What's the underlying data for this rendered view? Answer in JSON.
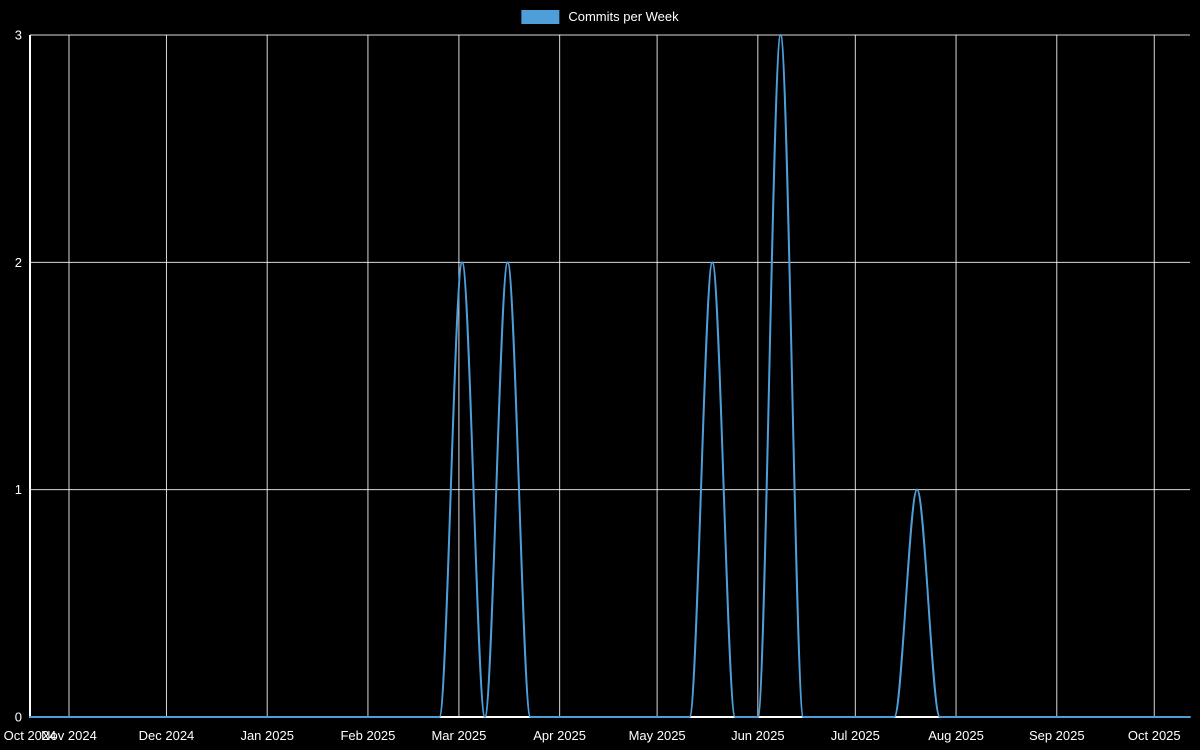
{
  "chart_data": {
    "type": "line",
    "title": "Commits per Week",
    "legend": "Commits per Week",
    "legend_position": "top-center",
    "background": "#000000",
    "grid": true,
    "grid_color": "rgba(255,255,255,0.85)",
    "axis_color": "#ffffff",
    "text_color": "#ffffff",
    "ylim": [
      0,
      3
    ],
    "y_ticks": [
      0,
      1,
      2,
      3
    ],
    "x_range": [
      "2024-10-20",
      "2025-10-12"
    ],
    "x_ticks": [
      {
        "label": "Oct 2024",
        "date": "2024-10-20"
      },
      {
        "label": "Nov 2024",
        "date": "2024-11-01"
      },
      {
        "label": "Dec 2024",
        "date": "2024-12-01"
      },
      {
        "label": "Jan 2025",
        "date": "2025-01-01"
      },
      {
        "label": "Feb 2025",
        "date": "2025-02-01"
      },
      {
        "label": "Mar 2025",
        "date": "2025-03-01"
      },
      {
        "label": "Apr 2025",
        "date": "2025-04-01"
      },
      {
        "label": "May 2025",
        "date": "2025-05-01"
      },
      {
        "label": "Jun 2025",
        "date": "2025-06-01"
      },
      {
        "label": "Jul 2025",
        "date": "2025-07-01"
      },
      {
        "label": "Aug 2025",
        "date": "2025-08-01"
      },
      {
        "label": "Sep 2025",
        "date": "2025-09-01"
      },
      {
        "label": "Oct 2025",
        "date": "2025-10-01"
      }
    ],
    "series": [
      {
        "name": "Commits per Week",
        "color": "#4d9ed9",
        "points": [
          [
            "2024-10-20",
            0
          ],
          [
            "2024-10-27",
            0
          ],
          [
            "2024-11-03",
            0
          ],
          [
            "2024-11-10",
            0
          ],
          [
            "2024-11-17",
            0
          ],
          [
            "2024-11-24",
            0
          ],
          [
            "2024-12-01",
            0
          ],
          [
            "2024-12-08",
            0
          ],
          [
            "2024-12-15",
            0
          ],
          [
            "2024-12-22",
            0
          ],
          [
            "2024-12-29",
            0
          ],
          [
            "2025-01-05",
            0
          ],
          [
            "2025-01-12",
            0
          ],
          [
            "2025-01-19",
            0
          ],
          [
            "2025-01-26",
            0
          ],
          [
            "2025-02-02",
            0
          ],
          [
            "2025-02-09",
            0
          ],
          [
            "2025-02-16",
            0
          ],
          [
            "2025-02-23",
            0
          ],
          [
            "2025-03-02",
            2
          ],
          [
            "2025-03-09",
            0
          ],
          [
            "2025-03-16",
            2
          ],
          [
            "2025-03-23",
            0
          ],
          [
            "2025-03-30",
            0
          ],
          [
            "2025-04-06",
            0
          ],
          [
            "2025-04-13",
            0
          ],
          [
            "2025-04-20",
            0
          ],
          [
            "2025-04-27",
            0
          ],
          [
            "2025-05-04",
            0
          ],
          [
            "2025-05-11",
            0
          ],
          [
            "2025-05-18",
            2
          ],
          [
            "2025-05-25",
            0
          ],
          [
            "2025-06-01",
            0
          ],
          [
            "2025-06-08",
            3
          ],
          [
            "2025-06-15",
            0
          ],
          [
            "2025-06-22",
            0
          ],
          [
            "2025-06-29",
            0
          ],
          [
            "2025-07-06",
            0
          ],
          [
            "2025-07-13",
            0
          ],
          [
            "2025-07-20",
            1
          ],
          [
            "2025-07-27",
            0
          ],
          [
            "2025-08-03",
            0
          ],
          [
            "2025-08-10",
            0
          ],
          [
            "2025-08-17",
            0
          ],
          [
            "2025-08-24",
            0
          ],
          [
            "2025-08-31",
            0
          ],
          [
            "2025-09-07",
            0
          ],
          [
            "2025-09-14",
            0
          ],
          [
            "2025-09-21",
            0
          ],
          [
            "2025-09-28",
            0
          ],
          [
            "2025-10-05",
            0
          ],
          [
            "2025-10-12",
            0
          ]
        ]
      }
    ]
  }
}
